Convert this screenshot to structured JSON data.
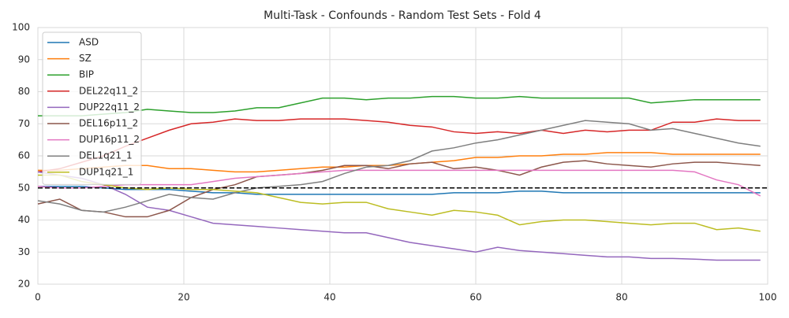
{
  "chart_data": {
    "type": "line",
    "title": "Multi-Task - Confounds - Random Test Sets - Fold 4",
    "x": [
      0,
      3,
      6,
      9,
      12,
      15,
      18,
      21,
      24,
      27,
      30,
      33,
      36,
      39,
      42,
      45,
      48,
      51,
      54,
      57,
      60,
      63,
      66,
      69,
      72,
      75,
      78,
      81,
      84,
      87,
      90,
      93,
      96,
      99
    ],
    "series": [
      {
        "name": "ASD",
        "color": "#1f77b4",
        "values": [
          50.5,
          50.5,
          50.5,
          50,
          49.5,
          49.5,
          49.5,
          49,
          48.5,
          48.5,
          48,
          48,
          48,
          48,
          48,
          48,
          48,
          48,
          48,
          48.5,
          48.5,
          48.5,
          49,
          49,
          48.5,
          48.5,
          48.5,
          48.5,
          48.5,
          48.5,
          48.5,
          48.5,
          48.5,
          48.5
        ]
      },
      {
        "name": "SZ",
        "color": "#ff7f0e",
        "values": [
          55.5,
          55.5,
          56,
          56.5,
          57,
          57,
          56,
          56,
          55.5,
          55,
          55,
          55.5,
          56,
          56.5,
          56.5,
          57,
          57,
          57.5,
          58,
          58.5,
          59.5,
          59.5,
          60,
          60,
          60.5,
          60.5,
          61,
          61,
          61,
          60.5,
          60.5,
          60.5,
          60.5,
          60.5
        ]
      },
      {
        "name": "BIP",
        "color": "#2ca02c",
        "values": [
          72.5,
          72.5,
          72.5,
          73,
          73.5,
          74.5,
          74,
          73.5,
          73.5,
          74,
          75,
          75,
          76.5,
          78,
          78,
          77.5,
          78,
          78,
          78.5,
          78.5,
          78,
          78,
          78.5,
          78,
          78,
          78,
          78,
          78,
          76.5,
          77,
          77.5,
          77.5,
          77.5,
          77.5
        ]
      },
      {
        "name": "DEL22q11_2",
        "color": "#d62728",
        "values": [
          55,
          56,
          58,
          60,
          63,
          65.5,
          68,
          70,
          70.5,
          71.5,
          71,
          71,
          71.5,
          71.5,
          71.5,
          71,
          70.5,
          69.5,
          69,
          67.5,
          67,
          67.5,
          67,
          68,
          67,
          68,
          67.5,
          68,
          68,
          70.5,
          70.5,
          71.5,
          71,
          71
        ]
      },
      {
        "name": "DUP22q11_2",
        "color": "#9467bd",
        "values": [
          55,
          54,
          53,
          51,
          48,
          44,
          43,
          41,
          39,
          38.5,
          38,
          37.5,
          37,
          36.5,
          36,
          36,
          34.5,
          33,
          32,
          31,
          30,
          31.5,
          30.5,
          30,
          29.5,
          29,
          28.5,
          28.5,
          28,
          28,
          27.8,
          27.5,
          27.5,
          27.5
        ]
      },
      {
        "name": "DEL16p11_2",
        "color": "#8c564b",
        "values": [
          45,
          46.5,
          43,
          42.5,
          41,
          41,
          43,
          47,
          49.5,
          51,
          53.5,
          54,
          54.5,
          55.5,
          57,
          57,
          56,
          57.5,
          58,
          56,
          56.5,
          55.5,
          54,
          56.5,
          58,
          58.5,
          57.5,
          57,
          56.5,
          57.5,
          58,
          58,
          57.5,
          57
        ]
      },
      {
        "name": "DUP16p11_2",
        "color": "#e377c2",
        "values": [
          50.5,
          50,
          50,
          50.5,
          51,
          51,
          51,
          51,
          52,
          53,
          53.5,
          54,
          54.5,
          55,
          55.5,
          55.5,
          55.5,
          55.5,
          55.5,
          55.5,
          55.5,
          55.5,
          55.5,
          55.5,
          55.5,
          55.5,
          55.5,
          55.5,
          55.5,
          55.5,
          55,
          52.5,
          51,
          47.5
        ]
      },
      {
        "name": "DEL1q21_1",
        "color": "#7f7f7f",
        "values": [
          46,
          45,
          43,
          42.5,
          44,
          46,
          48,
          47,
          46.5,
          48.5,
          50,
          50.5,
          51,
          52,
          54.5,
          56.5,
          57,
          58.5,
          61.5,
          62.5,
          64,
          65,
          66.5,
          68,
          69.5,
          71,
          70.5,
          70,
          68,
          68.5,
          67,
          65.5,
          64,
          63
        ]
      },
      {
        "name": "DUP1q21_1",
        "color": "#bcbd22",
        "values": [
          54,
          54,
          52,
          51,
          50,
          49.5,
          50,
          49.5,
          49.5,
          49,
          48.5,
          47,
          45.5,
          45,
          45.5,
          45.5,
          43.5,
          42.5,
          41.5,
          43,
          42.5,
          41.5,
          38.5,
          39.5,
          40,
          40,
          39.5,
          39,
          38.5,
          39,
          39,
          37,
          37.5,
          36.5
        ]
      }
    ],
    "hlines": [
      {
        "y": 50,
        "color": "#000000",
        "style": "dashed"
      }
    ],
    "xlim": [
      0,
      100
    ],
    "xticks": [
      0,
      20,
      40,
      60,
      80,
      100
    ],
    "ylim": [
      20,
      100
    ],
    "yticks": [
      20,
      30,
      40,
      50,
      60,
      70,
      80,
      90,
      100
    ],
    "grid": true,
    "legend": "upper left"
  }
}
